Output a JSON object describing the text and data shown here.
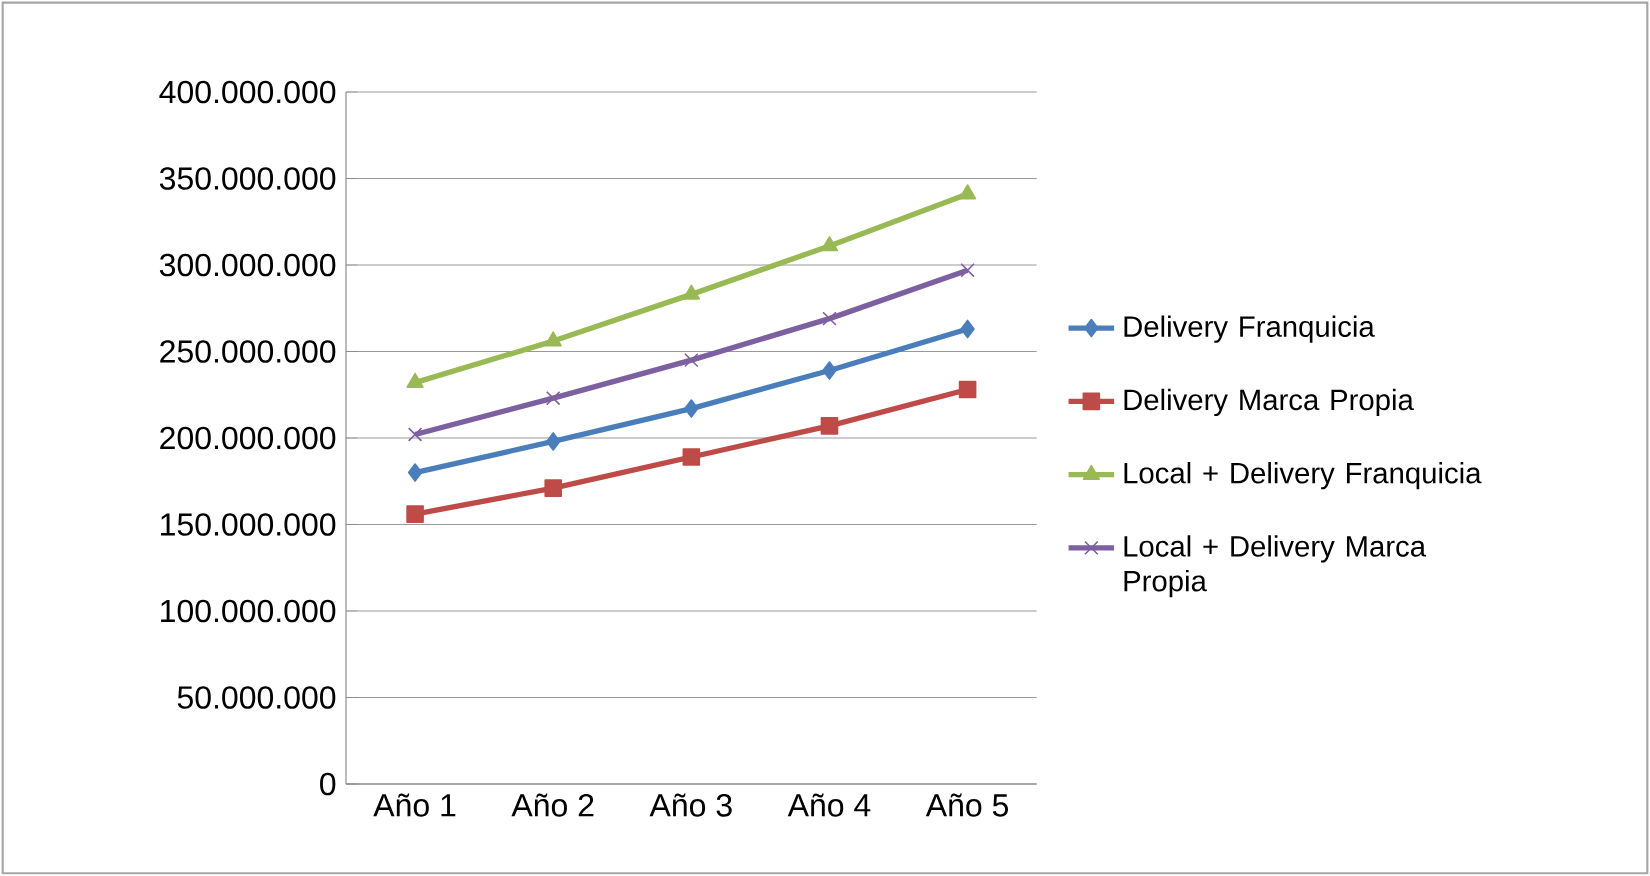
{
  "chart_data": {
    "type": "line",
    "categories": [
      "Año 1",
      "Año 2",
      "Año 3",
      "Año 4",
      "Año 5"
    ],
    "series": [
      {
        "name": "Delivery Franquicia",
        "color": "#4a7ebb",
        "marker": "diamond",
        "values": [
          180000000,
          198000000,
          217000000,
          239000000,
          263000000
        ]
      },
      {
        "name": "Delivery Marca Propia",
        "color": "#be4b48",
        "marker": "square",
        "values": [
          156000000,
          171000000,
          189000000,
          207000000,
          228000000
        ]
      },
      {
        "name": "Local + Delivery Franquicia",
        "color": "#98b954",
        "marker": "triangle",
        "values": [
          232000000,
          256000000,
          283000000,
          311000000,
          341000000
        ]
      },
      {
        "name": "Local + Delivery Marca Propia",
        "color": "#7d60a0",
        "marker": "cross",
        "values": [
          202000000,
          223000000,
          245000000,
          269000000,
          297000000
        ]
      }
    ],
    "ylim": [
      0,
      400000000
    ],
    "yticks": [
      0,
      {
        "value": 50000000,
        "label": "50.000.000"
      },
      {
        "value": 100000000,
        "label": "100.000.000"
      },
      {
        "value": 150000000,
        "label": "150.000.000"
      },
      {
        "value": 200000000,
        "label": "200.000.000"
      },
      {
        "value": 250000000,
        "label": "250.000.000"
      },
      {
        "value": 300000000,
        "label": "300.000.000"
      },
      {
        "value": 350000000,
        "label": "350.000.000"
      },
      {
        "value": 400000000,
        "label": "400.000.000"
      }
    ],
    "grid": "y",
    "legend": "right"
  }
}
